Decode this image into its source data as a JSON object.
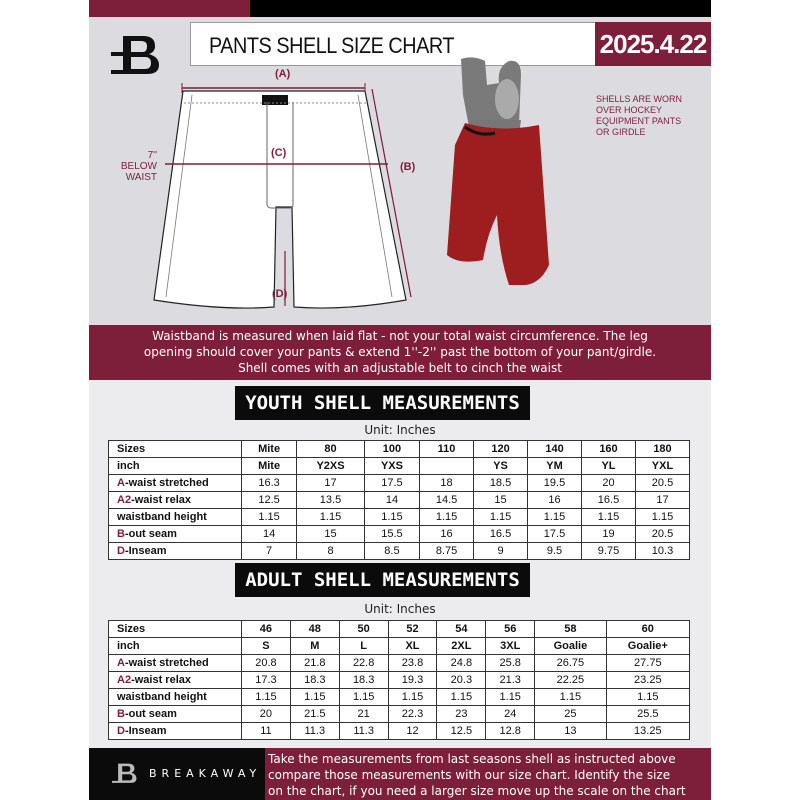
{
  "header": {
    "title": "PANTS SHELL SIZE CHART",
    "date": "2025.4.22",
    "logo_letter": "B"
  },
  "diagram": {
    "label_a": "(A)",
    "label_b": "(B)",
    "label_c": "(C)",
    "label_d": "(D)",
    "c_note_line1": "7'' BELOW",
    "c_note_line2": "WAIST",
    "shell_note": [
      "SHELLS ARE WORN",
      "OVER HOCKEY",
      "EQUIPMENT PANTS",
      "OR GIRDLE"
    ]
  },
  "banner": {
    "lines": [
      "Waistband is measured when laid flat - not your total waist circumference. The leg",
      "opening should cover your pants & extend 1''-2'' past the bottom of your pant/girdle.",
      "Shell comes with an adjustable belt to cinch the waist"
    ]
  },
  "youth": {
    "title": "YOUTH SHELL MEASUREMENTS",
    "unit": "Unit: Inches",
    "rows": [
      {
        "prefix": "",
        "label": "Sizes",
        "values": [
          "Mite",
          "80",
          "100",
          "110",
          "120",
          "140",
          "160",
          "180"
        ]
      },
      {
        "prefix": "",
        "label": "inch",
        "values": [
          "Mite",
          "Y2XS",
          "YXS",
          "",
          "YS",
          "YM",
          "YL",
          "YXL"
        ]
      },
      {
        "prefix": "A",
        "label": "-waist stretched",
        "values": [
          "16.3",
          "17",
          "17.5",
          "18",
          "18.5",
          "19.5",
          "20",
          "20.5"
        ]
      },
      {
        "prefix": "A2",
        "label": "-waist relax",
        "values": [
          "12.5",
          "13.5",
          "14",
          "14.5",
          "15",
          "16",
          "16.5",
          "17"
        ]
      },
      {
        "prefix": "",
        "label": "waistband height",
        "values": [
          "1.15",
          "1.15",
          "1.15",
          "1.15",
          "1.15",
          "1.15",
          "1.15",
          "1.15"
        ]
      },
      {
        "prefix": "B",
        "label": "-out seam",
        "values": [
          "14",
          "15",
          "15.5",
          "16",
          "16.5",
          "17.5",
          "19",
          "20.5"
        ]
      },
      {
        "prefix": "D",
        "label": "-Inseam",
        "values": [
          "7",
          "8",
          "8.5",
          "8.75",
          "9",
          "9.5",
          "9.75",
          "10.3"
        ]
      }
    ]
  },
  "adult": {
    "title": "ADULT SHELL MEASUREMENTS",
    "unit": "Unit: Inches",
    "rows": [
      {
        "prefix": "",
        "label": "Sizes",
        "values": [
          "46",
          "48",
          "50",
          "52",
          "54",
          "56",
          "58",
          "60"
        ]
      },
      {
        "prefix": "",
        "label": "inch",
        "values": [
          "S",
          "M",
          "L",
          "XL",
          "2XL",
          "3XL",
          "Goalie",
          "Goalie+"
        ]
      },
      {
        "prefix": "A",
        "label": "-waist stretched",
        "values": [
          "20.8",
          "21.8",
          "22.8",
          "23.8",
          "24.8",
          "25.8",
          "26.75",
          "27.75"
        ]
      },
      {
        "prefix": "A2",
        "label": "-waist relax",
        "values": [
          "17.3",
          "18.3",
          "18.3",
          "19.3",
          "20.3",
          "21.3",
          "22.25",
          "23.25"
        ]
      },
      {
        "prefix": "",
        "label": "waistband height",
        "values": [
          "1.15",
          "1.15",
          "1.15",
          "1.15",
          "1.15",
          "1.15",
          "1.15",
          "1.15"
        ]
      },
      {
        "prefix": "B",
        "label": "-out seam",
        "values": [
          "20",
          "21.5",
          "21",
          "22.3",
          "23",
          "24",
          "25",
          "25.5"
        ]
      },
      {
        "prefix": "D",
        "label": "-Inseam",
        "values": [
          "11",
          "11.3",
          "11.3",
          "12",
          "12.5",
          "12.8",
          "13",
          "13.25"
        ]
      }
    ]
  },
  "footer": {
    "brand": "BREAKAWAY",
    "lines": [
      "Take the measurements from last seasons shell as instructed above",
      "compare those measurements  with our size chart. Identify the size",
      "on the chart, if you need a larger size move up the scale on the chart"
    ]
  },
  "colors": {
    "accent": "#7d1f3a",
    "dark": "#0b0b0b",
    "background": "#dcdce0"
  }
}
